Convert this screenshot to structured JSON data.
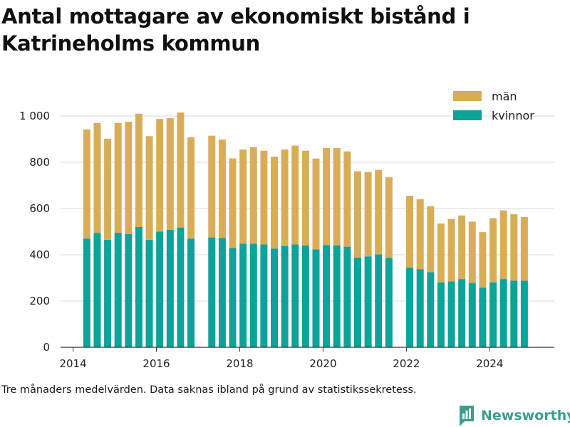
{
  "header": {
    "title": "Antal mottagare av ekonomiskt bistånd i Katrineholms kommun"
  },
  "footer": {
    "note": "Tre månaders medelvärden. Data saknas ibland på grund av statistikssekretess.",
    "brand": "Newsworthy",
    "brand_color": "#3a9e8c"
  },
  "chart_data": {
    "type": "bar",
    "stacked": true,
    "title": "Antal mottagare av ekonomiskt bistånd i Katrineholms kommun",
    "xlabel": "",
    "ylabel": "",
    "xlim": [
      2013.7,
      2025.55
    ],
    "ylim": [
      0,
      1000
    ],
    "x_ticks": [
      2014,
      2016,
      2018,
      2020,
      2022,
      2024
    ],
    "y_ticks": [
      0,
      200,
      400,
      600,
      800,
      1000
    ],
    "y_tick_labels": [
      "0",
      "200",
      "400",
      "600",
      "800",
      "1 000"
    ],
    "grid": true,
    "legend_position": "top-right",
    "x": [
      2014.33,
      2014.58,
      2014.83,
      2015.08,
      2015.33,
      2015.58,
      2015.83,
      2016.08,
      2016.33,
      2016.58,
      2016.83,
      2017.33,
      2017.58,
      2017.83,
      2018.08,
      2018.33,
      2018.58,
      2018.83,
      2019.08,
      2019.33,
      2019.58,
      2019.83,
      2020.08,
      2020.33,
      2020.58,
      2020.83,
      2021.08,
      2021.33,
      2021.58,
      2022.08,
      2022.33,
      2022.58,
      2022.83,
      2023.08,
      2023.33,
      2023.58,
      2023.83,
      2024.08,
      2024.33,
      2024.58,
      2024.83
    ],
    "series": [
      {
        "name": "kvinnor",
        "color": "#0ba39a",
        "values": [
          470,
          495,
          465,
          495,
          490,
          520,
          465,
          500,
          508,
          518,
          470,
          475,
          473,
          430,
          448,
          448,
          445,
          427,
          438,
          445,
          440,
          423,
          442,
          440,
          435,
          388,
          393,
          402,
          387,
          345,
          338,
          325,
          280,
          285,
          295,
          278,
          258,
          280,
          295,
          288,
          288
        ]
      },
      {
        "name": "män",
        "color": "#d9ad58",
        "values": [
          472,
          475,
          437,
          475,
          485,
          490,
          448,
          487,
          483,
          497,
          438,
          440,
          425,
          387,
          407,
          417,
          405,
          397,
          417,
          427,
          410,
          393,
          420,
          422,
          412,
          373,
          365,
          365,
          348,
          310,
          302,
          285,
          255,
          270,
          275,
          265,
          240,
          278,
          297,
          287,
          275
        ]
      }
    ]
  }
}
